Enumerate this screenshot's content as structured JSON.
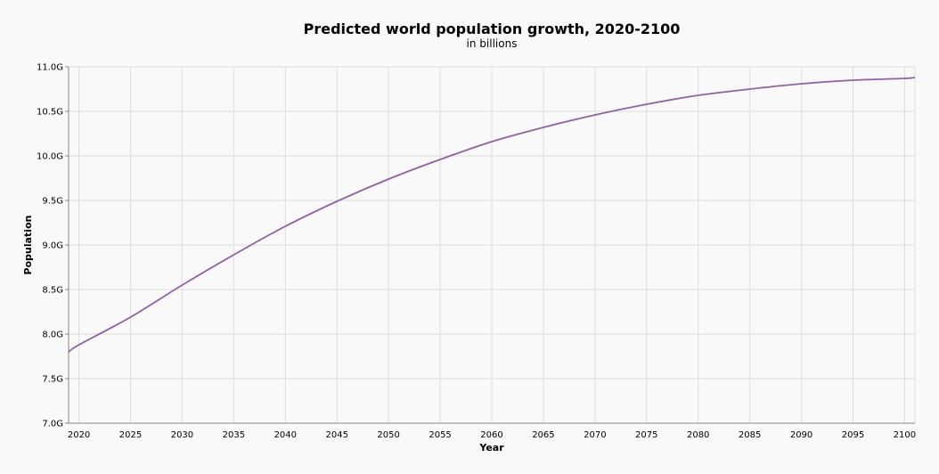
{
  "chart_data": {
    "type": "line",
    "title": "Predicted world population growth, 2020-2100",
    "subtitle": "in billions",
    "xlabel": "Year",
    "ylabel": "Population",
    "xlim": [
      2019,
      2101
    ],
    "ylim": [
      7.0,
      11.0
    ],
    "grid": true,
    "x_ticks": [
      2020,
      2025,
      2030,
      2035,
      2040,
      2045,
      2050,
      2055,
      2060,
      2065,
      2070,
      2075,
      2080,
      2085,
      2090,
      2095,
      2100
    ],
    "x_tick_labels": [
      "2020",
      "2025",
      "2030",
      "2035",
      "2040",
      "2045",
      "2050",
      "2055",
      "2060",
      "2065",
      "2070",
      "2075",
      "2080",
      "2085",
      "2090",
      "2095",
      "2100"
    ],
    "y_ticks": [
      7.0,
      7.5,
      8.0,
      8.5,
      9.0,
      9.5,
      10.0,
      10.5,
      11.0
    ],
    "y_tick_labels": [
      "7.0G",
      "7.5G",
      "8.0G",
      "8.5G",
      "9.0G",
      "9.5G",
      "10.0G",
      "10.5G",
      "11.0G"
    ],
    "series": [
      {
        "name": "Population",
        "color": "#9160a6",
        "x": [
          2019,
          2020,
          2025,
          2030,
          2035,
          2040,
          2045,
          2050,
          2055,
          2060,
          2065,
          2070,
          2075,
          2080,
          2085,
          2090,
          2095,
          2100,
          2101
        ],
        "values": [
          7.8,
          7.88,
          8.19,
          8.55,
          8.89,
          9.21,
          9.49,
          9.74,
          9.96,
          10.16,
          10.32,
          10.46,
          10.58,
          10.68,
          10.75,
          10.81,
          10.85,
          10.87,
          10.88
        ]
      }
    ]
  }
}
